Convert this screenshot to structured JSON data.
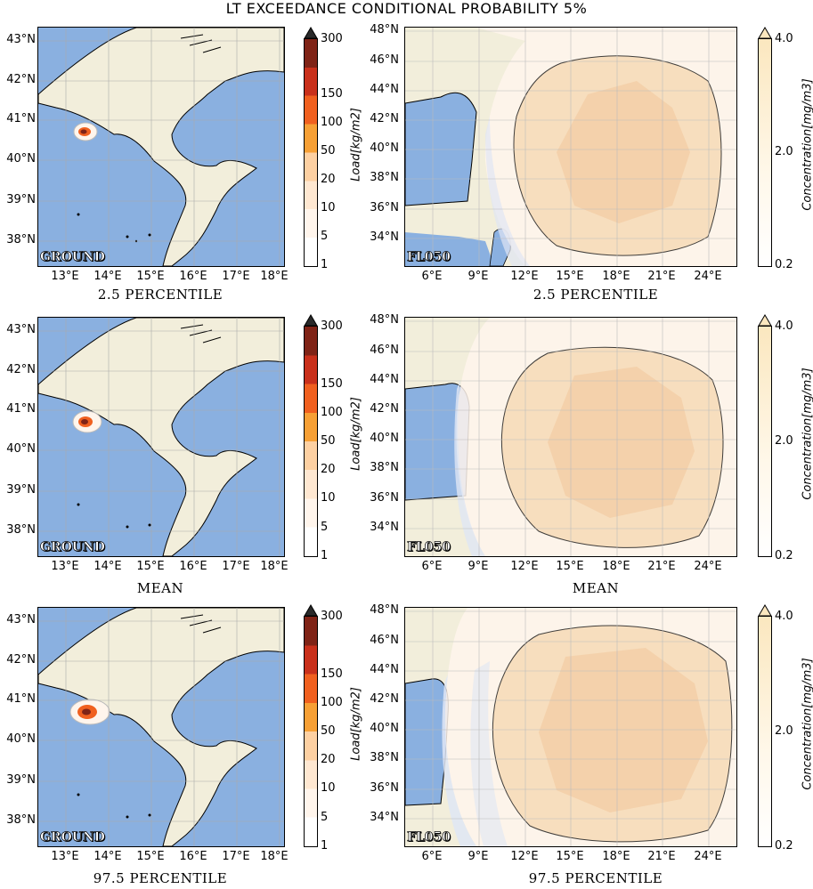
{
  "title": "LT EXCEEDANCE CONDITIONAL PROBABILITY 5%",
  "colors": {
    "sea": "#8ab0e0",
    "land": "#f2eedb",
    "load_levels": [
      "#fff5ec",
      "#fee7d1",
      "#fdd0a2",
      "#f7a035",
      "#f0601f",
      "#c9301b",
      "#7f2316",
      "#2a2a2a"
    ],
    "conc_light": "#fff8ea",
    "conc_dark": "#fbe7bf"
  },
  "rows": [
    {
      "left_caption": "2.5 PERCENTILE",
      "right_caption": "2.5 PERCENTILE",
      "ground_tag": "GROUND",
      "fl_tag": "FL050"
    },
    {
      "left_caption": "MEAN",
      "right_caption": "MEAN",
      "ground_tag": "GROUND",
      "fl_tag": "FL050"
    },
    {
      "left_caption": "97.5 PERCENTILE",
      "right_caption": "97.5 PERCENTILE",
      "ground_tag": "GROUND",
      "fl_tag": "FL050"
    }
  ],
  "ground_map": {
    "lat_labels": [
      "43°N",
      "42°N",
      "41°N",
      "40°N",
      "39°N",
      "38°N"
    ],
    "lon_labels": [
      "13°E",
      "14°E",
      "15°E",
      "16°E",
      "17°E",
      "18°E"
    ]
  },
  "fl_map": {
    "lat_labels": [
      "48°N",
      "46°N",
      "44°N",
      "42°N",
      "40°N",
      "38°N",
      "36°N",
      "34°N"
    ],
    "lon_labels": [
      "6°E",
      "9°E",
      "12°E",
      "15°E",
      "18°E",
      "21°E",
      "24°E"
    ]
  },
  "load_colorbar": {
    "label": "Load[kg/m2]",
    "ticks": [
      "1",
      "5",
      "10",
      "20",
      "50",
      "100",
      "150",
      "300"
    ]
  },
  "conc_colorbar": {
    "label": "Concentration[mg/m3]",
    "ticks": [
      "0.2",
      "2.0",
      "4.0"
    ]
  }
}
